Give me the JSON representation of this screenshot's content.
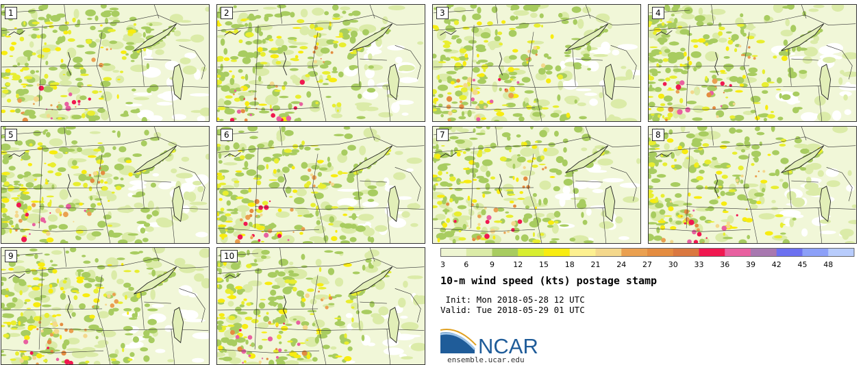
{
  "panels": [
    {
      "label": "1"
    },
    {
      "label": "2"
    },
    {
      "label": "3"
    },
    {
      "label": "4"
    },
    {
      "label": "5"
    },
    {
      "label": "6"
    },
    {
      "label": "7"
    },
    {
      "label": "8"
    },
    {
      "label": "9"
    },
    {
      "label": "10"
    }
  ],
  "colorbar": {
    "ticks": [
      "3",
      "6",
      "9",
      "12",
      "15",
      "18",
      "21",
      "24",
      "27",
      "30",
      "33",
      "36",
      "39",
      "42",
      "45",
      "48"
    ],
    "colors": [
      "#eef5d2",
      "#dbeba8",
      "#a8cc60",
      "#d8ee30",
      "#f8ec10",
      "#fdf090",
      "#f4d88c",
      "#eaa050",
      "#e48c40",
      "#da7840",
      "#f01850",
      "#e860a0",
      "#a878b0",
      "#6c70f0",
      "#8ca0f8",
      "#b8ccfc"
    ]
  },
  "title": "10-m wind speed (kts) postage stamp",
  "init": " Init: Mon 2018-05-28 12 UTC",
  "valid": "Valid: Tue 2018-05-29 01 UTC",
  "logo": {
    "text": "NCAR",
    "color": "#1f5c99",
    "icon": "ncar-swoosh-icon"
  },
  "url": "ensemble.ucar.edu"
}
